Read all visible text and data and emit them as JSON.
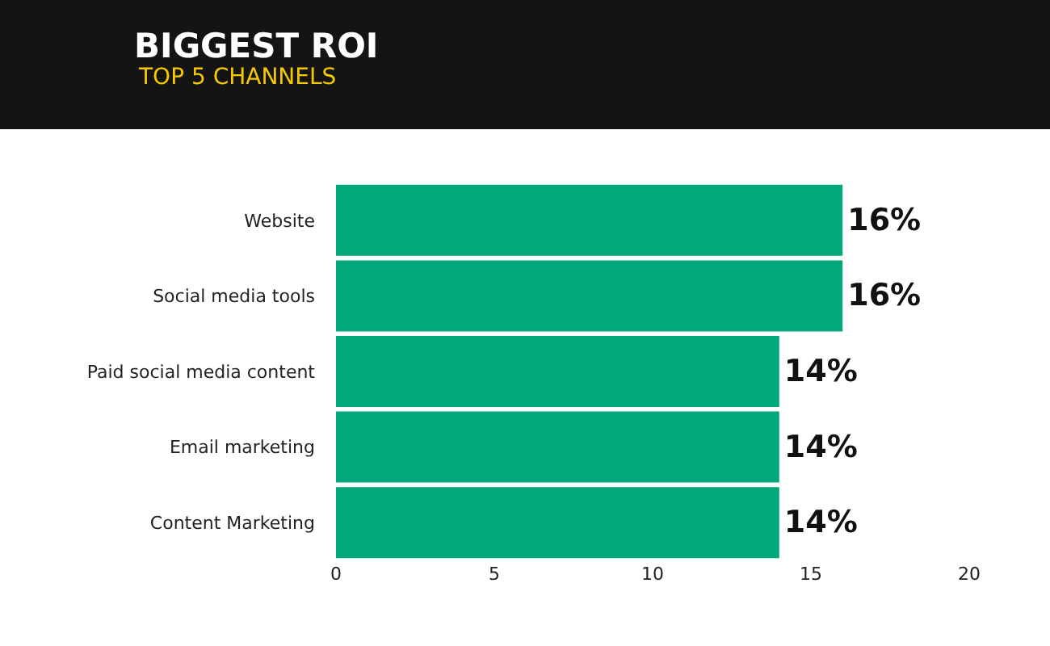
{
  "chart_data": {
    "type": "bar",
    "orientation": "horizontal",
    "title": "BIGGEST ROI",
    "subtitle": "TOP 5 CHANNELS",
    "categories": [
      "Website",
      "Social media tools",
      "Paid social media content",
      "Email marketing",
      "Content Marketing"
    ],
    "values": [
      16,
      16,
      14,
      14,
      14
    ],
    "color": "#02a87b",
    "value_labels": [
      "16%",
      "16%",
      "14%",
      "14%",
      "14%"
    ],
    "xlim": [
      0,
      20
    ],
    "xticks": [
      0,
      5,
      10,
      15,
      20
    ]
  }
}
